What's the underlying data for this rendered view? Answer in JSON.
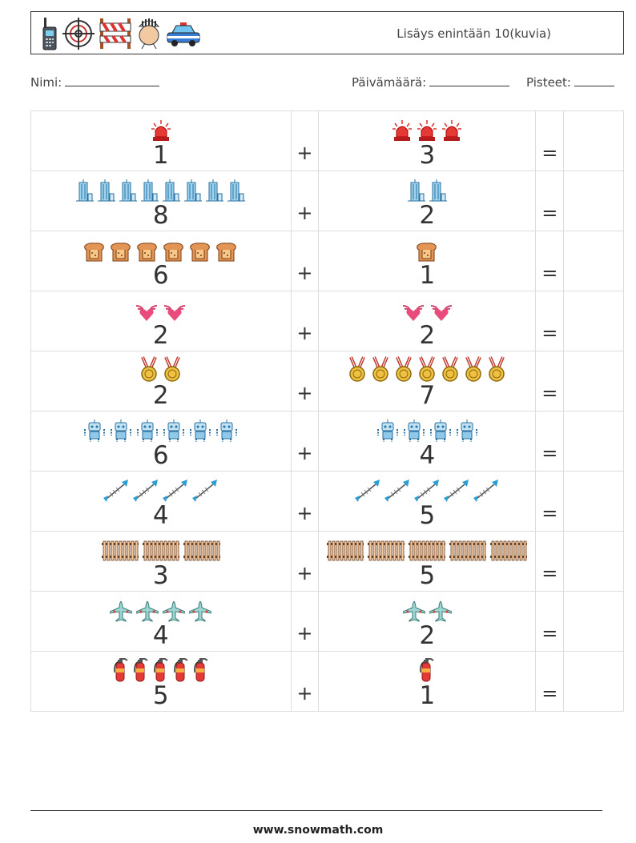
{
  "header": {
    "title": "Lisäys enintään 10(kuvia)",
    "icons": [
      "walkie-talkie-icon",
      "crosshair-icon",
      "barrier-icon",
      "prisoner-icon",
      "police-car-icon"
    ]
  },
  "fields": {
    "name_label": "Nimi:",
    "date_label": "Päivämäärä:",
    "score_label": "Pisteet:"
  },
  "operator": "+",
  "equals": "=",
  "problems": [
    {
      "icon": "siren-icon",
      "a": "1",
      "b": "3"
    },
    {
      "icon": "skyscraper-icon",
      "a": "8",
      "b": "2"
    },
    {
      "icon": "toast-icon",
      "a": "6",
      "b": "1"
    },
    {
      "icon": "winged-heart-icon",
      "a": "2",
      "b": "2"
    },
    {
      "icon": "medal-icon",
      "a": "2",
      "b": "7"
    },
    {
      "icon": "robot-icon",
      "a": "6",
      "b": "4"
    },
    {
      "icon": "fishbone-icon",
      "a": "4",
      "b": "5"
    },
    {
      "icon": "fence-icon",
      "a": "3",
      "b": "5"
    },
    {
      "icon": "airplane-icon",
      "a": "4",
      "b": "2"
    },
    {
      "icon": "fire-extinguisher-icon",
      "a": "5",
      "b": "1"
    }
  ],
  "footer": {
    "url": "www.snowmath.com"
  }
}
